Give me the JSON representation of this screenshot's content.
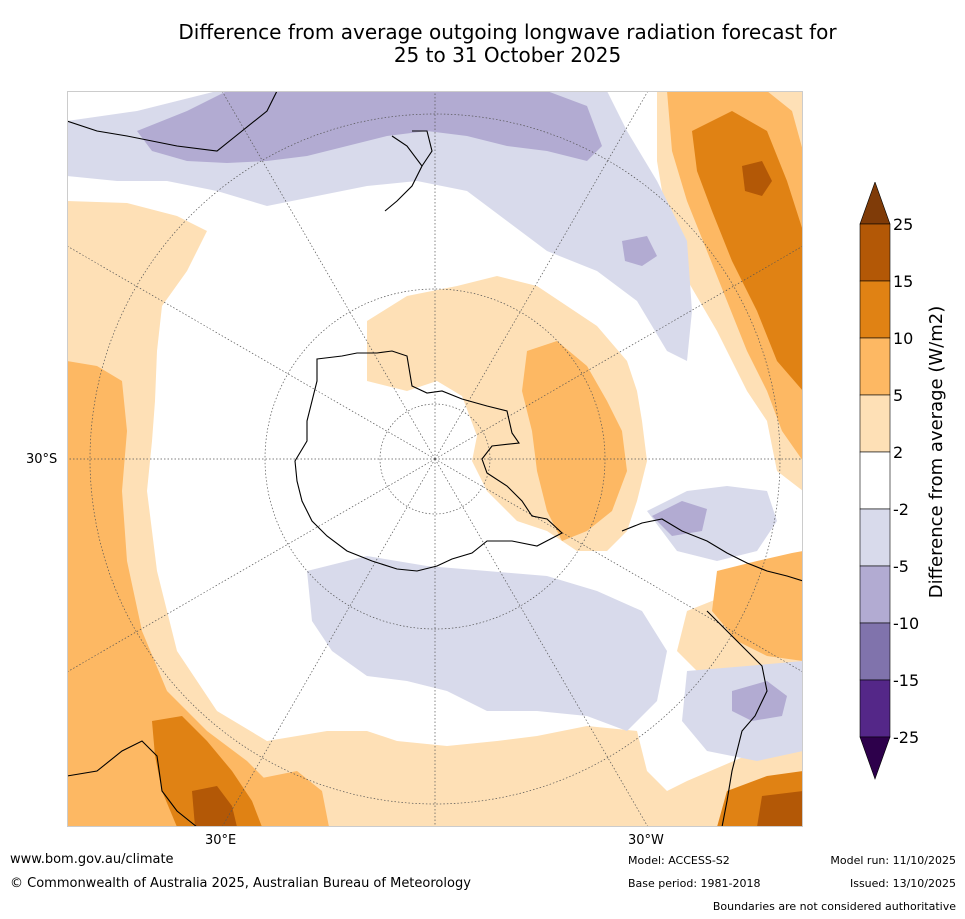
{
  "title": {
    "line1": "Difference from average outgoing longwave radiation forecast for",
    "line2": "25 to 31 October 2025"
  },
  "map": {
    "projection": "South polar stereographic",
    "labels": {
      "lat": "30°S",
      "lon_east": "30°E",
      "lon_west": "30°W"
    }
  },
  "legend": {
    "label": "Difference from average (W/m2)",
    "bins": [
      {
        "from": 25,
        "to": null,
        "color": "#7f3b08"
      },
      {
        "from": 15,
        "to": 25,
        "color": "#b35806"
      },
      {
        "from": 10,
        "to": 15,
        "color": "#e08214"
      },
      {
        "from": 5,
        "to": 10,
        "color": "#fdb863"
      },
      {
        "from": 2,
        "to": 5,
        "color": "#fee0b6"
      },
      {
        "from": -2,
        "to": 2,
        "color": "#ffffff"
      },
      {
        "from": -5,
        "to": -2,
        "color": "#d8daeb"
      },
      {
        "from": -10,
        "to": -5,
        "color": "#b2abd2"
      },
      {
        "from": -15,
        "to": -10,
        "color": "#8073ac"
      },
      {
        "from": -25,
        "to": -15,
        "color": "#542788"
      },
      {
        "from": null,
        "to": -25,
        "color": "#2d004b"
      }
    ],
    "ticks": [
      "25",
      "15",
      "10",
      "5",
      "2",
      "-2",
      "-5",
      "-10",
      "-15",
      "-25"
    ]
  },
  "footer": {
    "website": "www.bom.gov.au/climate",
    "copyright": "© Commonwealth of Australia 2025, Australian Bureau of Meteorology",
    "model": "Model: ACCESS-S2",
    "base_period": "Base period: 1981-2018",
    "model_run": "Model run: 11/10/2025",
    "issued": "Issued: 13/10/2025",
    "disclaimer": "Boundaries are not considered authoritative"
  }
}
